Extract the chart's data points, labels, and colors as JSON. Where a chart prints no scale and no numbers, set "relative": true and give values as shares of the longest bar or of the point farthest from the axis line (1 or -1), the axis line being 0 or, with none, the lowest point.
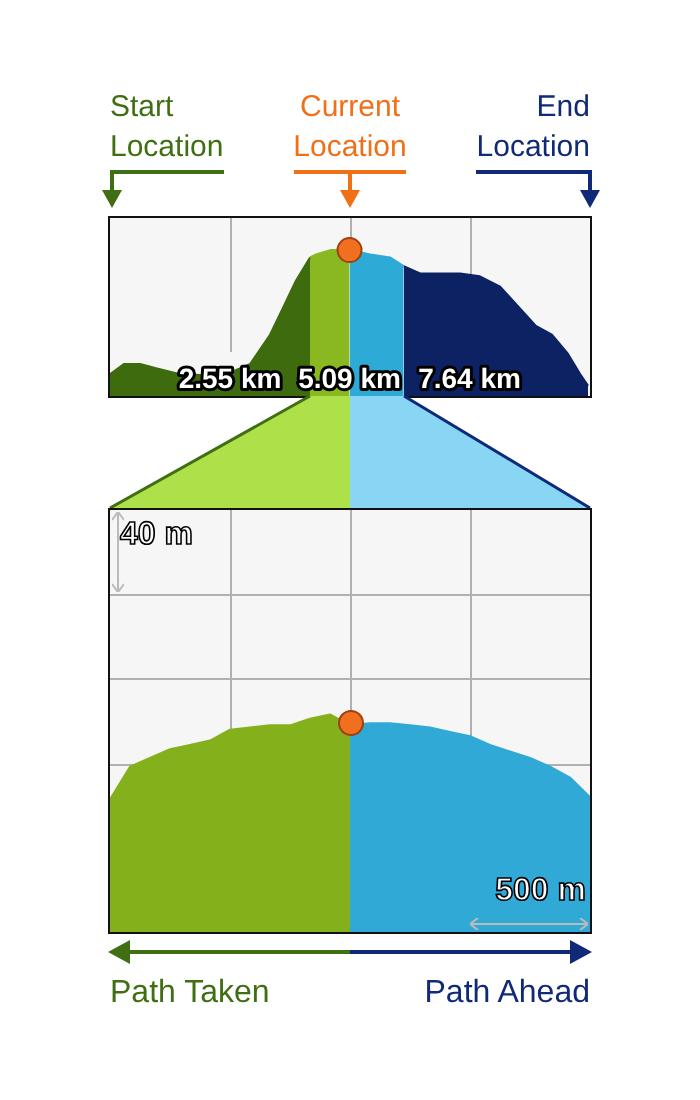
{
  "chart_data": [
    {
      "type": "area",
      "relative": true,
      "xlim": [
        0,
        10.2
      ],
      "xticks": [
        {
          "value": 2.55,
          "label": "2.55 km"
        },
        {
          "value": 5.09,
          "label": "5.09 km"
        },
        {
          "value": 7.64,
          "label": "7.64 km"
        }
      ],
      "grid": "x",
      "legend": false,
      "annotations": [
        "Start Location",
        "Current Location",
        "End Location"
      ],
      "series": [
        {
          "color": "#3d6b0e",
          "x": [
            0,
            0.3,
            0.64,
            0.98,
            1.49,
            2.13,
            2.55,
            2.98,
            3.4,
            3.7,
            3.95,
            4.25
          ],
          "values": [
            0.15,
            0.22,
            0.22,
            0.19,
            0.15,
            0.14,
            0.16,
            0.22,
            0.42,
            0.62,
            0.79,
            0.95
          ]
        },
        {
          "color": "#8ab820",
          "x": [
            4.25,
            4.38,
            4.68,
            5.09
          ],
          "values": [
            0.95,
            0.97,
            1,
            1
          ]
        },
        {
          "color": "#2eaad6",
          "x": [
            5.09,
            5.53,
            5.95,
            6.24
          ],
          "values": [
            1,
            0.97,
            0.95,
            0.89
          ]
        },
        {
          "color": "#0c2262",
          "x": [
            6.24,
            6.59,
            7.01,
            7.44,
            7.86,
            8.29,
            8.63,
            9.05,
            9.39,
            9.73,
            9.99,
            10.16
          ],
          "values": [
            0.89,
            0.84,
            0.84,
            0.84,
            0.82,
            0.75,
            0.63,
            0.48,
            0.42,
            0.29,
            0.15,
            0.07
          ]
        },
        {
          "type": "scatter",
          "marker": "circle",
          "color": "#f07020",
          "x": [
            5.09
          ],
          "values": [
            1
          ]
        }
      ]
    },
    {
      "type": "area",
      "relative": true,
      "categories": [
        null,
        null,
        null,
        null,
        null,
        null,
        null,
        null,
        null,
        null,
        null,
        null,
        null,
        null,
        null,
        null,
        null,
        null,
        null,
        null,
        null,
        null,
        null,
        null,
        null
      ],
      "grid": true,
      "legend": false,
      "annotations": [
        "40 m",
        "500 m",
        "Path Taken",
        "Path Ahead"
      ],
      "series": [
        {
          "color": "#84b01c",
          "values": [
            0.61,
            0.76,
            0.8,
            0.84,
            0.86,
            0.88,
            0.93,
            0.94,
            0.95,
            0.95,
            0.98,
            1,
            0.95,
            null,
            null,
            null,
            null,
            null,
            null,
            null,
            null,
            null,
            null,
            null,
            null
          ]
        },
        {
          "color": "#30a9d6",
          "values": [
            null,
            null,
            null,
            null,
            null,
            null,
            null,
            null,
            null,
            null,
            null,
            null,
            0.95,
            0.96,
            0.96,
            0.95,
            0.94,
            0.92,
            0.9,
            0.86,
            0.83,
            0.8,
            0.76,
            0.71,
            0.62
          ]
        }
      ]
    }
  ]
}
